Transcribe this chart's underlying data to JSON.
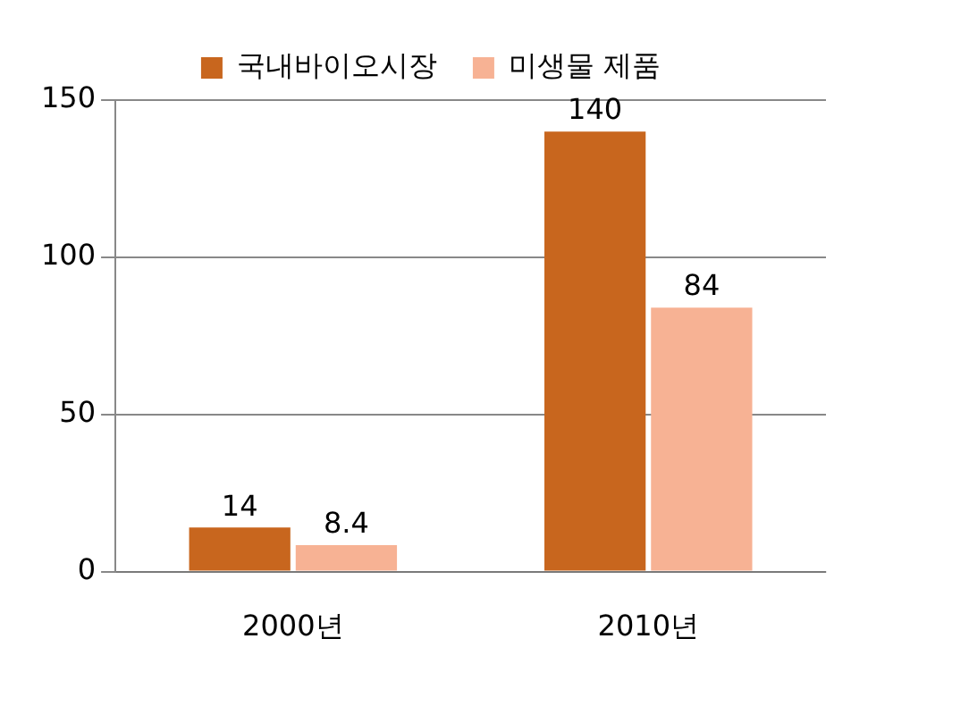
{
  "chart_data": {
    "type": "bar",
    "categories": [
      "2000년",
      "2010년"
    ],
    "series": [
      {
        "name": "국내바이오시장",
        "color": "#c8661e",
        "values": [
          14,
          140
        ]
      },
      {
        "name": "미생물 제품",
        "color": "#f7b294",
        "values": [
          8.4,
          84
        ]
      }
    ],
    "ylim": [
      0,
      150
    ],
    "yticks": [
      0,
      50,
      100,
      150
    ],
    "grid": "y",
    "legend": "top",
    "data_labels": true
  }
}
